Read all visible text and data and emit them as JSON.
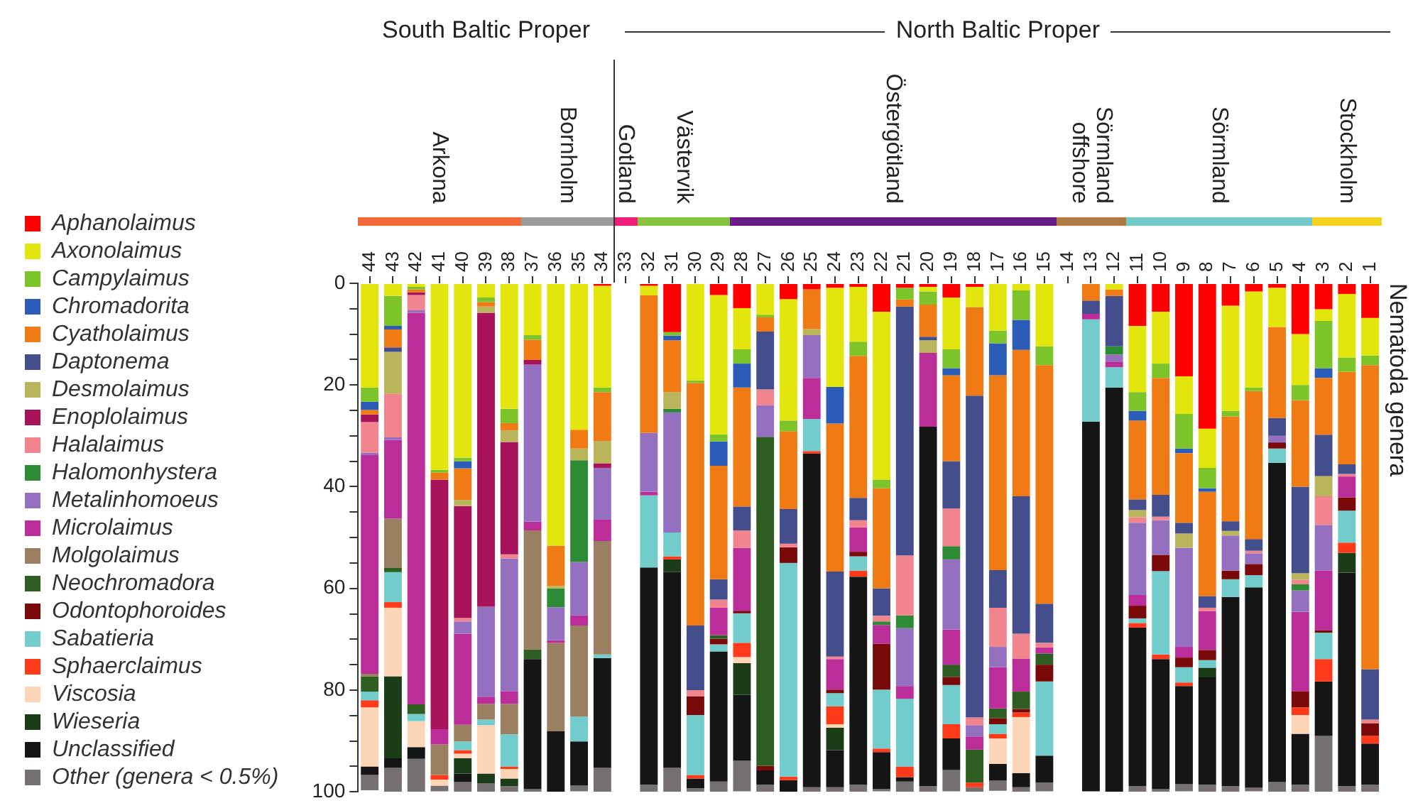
{
  "chart_data": {
    "type": "bar",
    "stacked": true,
    "ylabel": "Nematoda genera",
    "legend": "left",
    "categories": [
      "44",
      "43",
      "42",
      "41",
      "40",
      "39",
      "38",
      "37",
      "36",
      "35",
      "34",
      "33",
      "32",
      "31",
      "30",
      "29",
      "28",
      "27",
      "26",
      "25",
      "24",
      "23",
      "22",
      "21",
      "20",
      "19",
      "18",
      "17",
      "16",
      "15",
      "14",
      "13",
      "12",
      "11",
      "10",
      "9",
      "8",
      "7",
      "6",
      "5",
      "4",
      "3",
      "2",
      "1"
    ],
    "ylim": [
      100,
      0
    ],
    "yticks": [
      0,
      {
        "value": 5,
        "label": null
      },
      {
        "value": 10,
        "label": null
      },
      {
        "value": 15,
        "label": null
      },
      20,
      {
        "value": 25,
        "label": null
      },
      {
        "value": 30,
        "label": null
      },
      {
        "value": 35,
        "label": null
      },
      40,
      {
        "value": 45,
        "label": null
      },
      {
        "value": 50,
        "label": null
      },
      {
        "value": 55,
        "label": null
      },
      60,
      {
        "value": 65,
        "label": null
      },
      {
        "value": 70,
        "label": null
      },
      {
        "value": 75,
        "label": null
      },
      80,
      {
        "value": 85,
        "label": null
      },
      {
        "value": 90,
        "label": null
      },
      {
        "value": 95,
        "label": null
      },
      100
    ],
    "annotations": [
      "South Baltic Proper",
      "North Baltic Proper",
      "Arkona",
      "Bornholm",
      "Gotland",
      "Västervik",
      "Östergötland",
      "Sörmland offshore",
      "Sörmland",
      "Stockholm"
    ],
    "series": [
      {
        "name": "Aphanolaimus",
        "color": "#ff0000",
        "values": [
          0,
          0,
          0,
          0,
          0,
          0,
          0,
          0,
          0,
          0,
          0.5,
          null,
          0.5,
          9.6,
          0,
          2.3,
          4.9,
          0,
          3.1,
          1.2,
          0.9,
          0.7,
          5.6,
          0.9,
          0.7,
          2.8,
          0.7,
          0,
          0,
          0,
          null,
          0,
          0,
          8.4,
          5.6,
          18.3,
          28.6,
          4.4,
          1.6,
          0.9,
          10,
          5.1,
          2.1,
          6.8
        ]
      },
      {
        "name": "Axonolaimus",
        "color": "#e2e60c",
        "values": [
          20.5,
          2.5,
          0.7,
          36.7,
          34.3,
          2.8,
          24.7,
          10.2,
          51.6,
          28.8,
          20,
          null,
          1.9,
          0,
          19.1,
          27.4,
          8.1,
          6.2,
          23.9,
          0,
          19.5,
          10.8,
          33,
          0,
          0.9,
          10.2,
          4,
          9.3,
          1.4,
          12.4,
          null,
          0,
          1.2,
          13,
          10.2,
          7.4,
          7.7,
          20.7,
          18.9,
          7.7,
          10,
          2.3,
          12.5,
          7.4
        ]
      },
      {
        "name": "Campylaimus",
        "color": "#7dc42a",
        "values": [
          2.8,
          5.9,
          0.5,
          0.5,
          0.7,
          0.9,
          2.8,
          0.9,
          0,
          0,
          0.9,
          null,
          0,
          0.7,
          0.5,
          1.4,
          2.8,
          0.5,
          2.1,
          0,
          0,
          2.8,
          1.7,
          2.3,
          2.6,
          3.7,
          0,
          2.5,
          5.8,
          3.7,
          null,
          0,
          0,
          3.7,
          2.8,
          6.8,
          4,
          1.1,
          0.7,
          0,
          3,
          9.3,
          2.8,
          1.9
        ]
      },
      {
        "name": "Chromadorita",
        "color": "#2b5cb8",
        "values": [
          1.6,
          0.7,
          0,
          0,
          1.4,
          0,
          0,
          0,
          0,
          0,
          0,
          null,
          0,
          0.9,
          0,
          4.8,
          4.7,
          0,
          0,
          0,
          7.2,
          0,
          0,
          0,
          0,
          1.4,
          0,
          6.3,
          5.9,
          0,
          null,
          0,
          0,
          1.9,
          0,
          0.9,
          0.7,
          0,
          0,
          0,
          0,
          1.9,
          0,
          0
        ]
      },
      {
        "name": "Cyatholaimus",
        "color": "#f07a14",
        "values": [
          0.9,
          3.5,
          0.6,
          1.4,
          6.2,
          0.9,
          1.4,
          4,
          7.9,
          3.7,
          9.6,
          null,
          27,
          10.2,
          47.7,
          22.3,
          23.4,
          2.8,
          15.3,
          7.8,
          29.1,
          27.9,
          19.7,
          1.4,
          6.3,
          16.9,
          17.4,
          38.3,
          28.8,
          46.9,
          null,
          3.4,
          1.3,
          15.5,
          23,
          13.7,
          20.5,
          20.6,
          29.1,
          17.9,
          17,
          11.2,
          18.2,
          59.8
        ]
      },
      {
        "name": "Daptonema",
        "color": "#454e8c",
        "values": [
          0,
          0.9,
          0,
          0,
          0,
          0,
          0,
          0,
          0,
          0,
          0,
          null,
          0,
          0,
          12.7,
          4,
          4.7,
          11.4,
          6.8,
          0,
          16.7,
          4.4,
          5.4,
          48.9,
          0.7,
          9.3,
          63.3,
          7.4,
          27,
          7.7,
          null,
          2.6,
          9.9,
          2.1,
          4.3,
          2.1,
          2.3,
          1.9,
          2.3,
          3.5,
          17,
          8.1,
          1.9,
          9.9
        ]
      },
      {
        "name": "Desmolaimus",
        "color": "#bab45a",
        "values": [
          0,
          8.2,
          0,
          0,
          1.2,
          1.2,
          2.3,
          0,
          0.5,
          2.3,
          4.4,
          null,
          0,
          3.3,
          0,
          0,
          0,
          0,
          0,
          1.2,
          0,
          0,
          0,
          0,
          2.5,
          0,
          0,
          0,
          0,
          0,
          null,
          0,
          0,
          1.4,
          0,
          2.8,
          0,
          0.9,
          0,
          0,
          1.3,
          4,
          0,
          0
        ]
      },
      {
        "name": "Enoplolaimus",
        "color": "#a8125a",
        "values": [
          1.5,
          0,
          0.5,
          49.1,
          22,
          57.8,
          22.1,
          0.9,
          0,
          0,
          0.9,
          null,
          0,
          0,
          0,
          0,
          0,
          0,
          0,
          0,
          0,
          0,
          0,
          0,
          0,
          0,
          0,
          0,
          0,
          0,
          null,
          0,
          0,
          0,
          0,
          0,
          0,
          0,
          0,
          0,
          0,
          0,
          0,
          0
        ]
      },
      {
        "name": "Halalaimus",
        "color": "#f2848e",
        "values": [
          6,
          8.6,
          3,
          0,
          0.7,
          0,
          0.8,
          0,
          0,
          0,
          0,
          null,
          0,
          0,
          1.2,
          1.6,
          3.4,
          3.1,
          0.7,
          0,
          0.5,
          1.4,
          1.1,
          11.8,
          0,
          7.4,
          1.5,
          7.7,
          4.9,
          0.9,
          null,
          0,
          0,
          1.1,
          0.7,
          0,
          0.7,
          0,
          0.5,
          0,
          0.9,
          5.6,
          0.5,
          0.7
        ]
      },
      {
        "name": "Halomonhystera",
        "color": "#2e8b35",
        "values": [
          0,
          0,
          0,
          0,
          0,
          0,
          0,
          0,
          3.7,
          20,
          0,
          null,
          0,
          0.7,
          0,
          0,
          0,
          0,
          0,
          0,
          0,
          0,
          0.7,
          2.5,
          0,
          2.6,
          0,
          0,
          0,
          0,
          null,
          0,
          1.6,
          0,
          0,
          0,
          0,
          0,
          0,
          0,
          1.2,
          0,
          0,
          0
        ]
      },
      {
        "name": "Metalinhomoeus",
        "color": "#9670c0",
        "values": [
          0.5,
          0.5,
          0.5,
          0,
          2.4,
          17.7,
          26.1,
          30.9,
          6.5,
          10.5,
          10.2,
          null,
          11.6,
          23.6,
          0,
          0,
          0,
          6.2,
          0,
          8.4,
          0,
          0,
          0,
          11.4,
          0,
          13.8,
          2.2,
          4,
          0,
          0,
          null,
          0,
          1.4,
          14.2,
          6.8,
          19.5,
          0,
          6.9,
          2.1,
          1.3,
          4.2,
          9,
          0,
          0
        ]
      },
      {
        "name": "Microlaimus",
        "color": "#bb2d98",
        "values": [
          43,
          15.5,
          77,
          3,
          17.9,
          1.4,
          2.5,
          1.7,
          0.5,
          2,
          4.2,
          null,
          0.7,
          0,
          0,
          5.4,
          12.4,
          0,
          0,
          8.1,
          6,
          4.8,
          3.7,
          2.5,
          14.5,
          6.9,
          2.6,
          8.1,
          6.5,
          1.2,
          null,
          1.1,
          1.1,
          2.1,
          0,
          2.1,
          7.6,
          0,
          0,
          0,
          15.6,
          11.7,
          4.1,
          0
        ]
      },
      {
        "name": "Molgolaimus",
        "color": "#9a8060",
        "values": [
          0.5,
          9.6,
          0,
          6,
          3.3,
          3.1,
          6,
          23.4,
          17.4,
          17.9,
          22.3,
          null,
          0,
          0,
          0,
          0,
          0,
          0,
          0,
          0,
          0,
          0,
          0,
          0,
          0,
          0,
          0,
          0,
          0,
          0,
          null,
          0,
          0,
          0,
          0,
          0,
          0,
          0,
          0,
          0,
          0,
          0,
          0,
          0
        ]
      },
      {
        "name": "Neochromadora",
        "color": "#2f5e22",
        "values": [
          3,
          0.9,
          1.9,
          0,
          0,
          0,
          0,
          1.9,
          0,
          0,
          0,
          null,
          0,
          0,
          0,
          0.7,
          0,
          64.7,
          0,
          0,
          0,
          0,
          0,
          0,
          0,
          2.4,
          6.5,
          1.9,
          3.4,
          2.2,
          null,
          0,
          0,
          0,
          0,
          0,
          0,
          0,
          0,
          0,
          0,
          0,
          0,
          0
        ]
      },
      {
        "name": "Odontophoroides",
        "color": "#7a0a0a",
        "values": [
          0,
          0,
          0,
          0,
          0,
          0,
          0,
          0,
          0,
          0,
          0,
          null,
          0,
          0,
          3.7,
          1.1,
          0.5,
          0.9,
          3.1,
          0,
          0.7,
          0.9,
          9,
          0,
          0,
          1.6,
          0,
          1.2,
          0.7,
          3.3,
          null,
          0,
          0,
          2.5,
          3.2,
          1.9,
          2,
          1.7,
          2.2,
          1.2,
          3.2,
          0.5,
          2.6,
          2.5
        ]
      },
      {
        "name": "Sabatieria",
        "color": "#72cccc",
        "values": [
          1.7,
          5.9,
          1.4,
          0,
          1.7,
          1.1,
          6.3,
          0,
          0,
          4.9,
          0.7,
          null,
          14.2,
          4.7,
          11.8,
          1.4,
          5.8,
          0,
          42,
          6.3,
          2.6,
          2.8,
          11.6,
          13.3,
          0,
          7.7,
          0,
          1.9,
          0,
          14.6,
          null,
          20.1,
          4,
          0.9,
          16.4,
          3,
          1.5,
          3.5,
          2.4,
          2.8,
          0,
          5.2,
          6.3,
          0
        ]
      },
      {
        "name": "Sphaerclaimus",
        "color": "#ff3a1a",
        "values": [
          1.4,
          1.1,
          0,
          0.9,
          0.7,
          0,
          0.5,
          0,
          0,
          0,
          0,
          null,
          0,
          0.6,
          0.7,
          0,
          2.8,
          0,
          0.7,
          0.5,
          3.5,
          1.2,
          0.7,
          2.1,
          0,
          2.8,
          0.9,
          0.9,
          0.9,
          0,
          null,
          0,
          0,
          0.9,
          0.9,
          0.7,
          0,
          0,
          0,
          0,
          1.5,
          4.4,
          2,
          1.5
        ]
      },
      {
        "name": "Viscosia",
        "color": "#fbd5b5",
        "values": [
          11.6,
          13.5,
          5.1,
          1.2,
          0.9,
          9.5,
          1.9,
          0,
          0,
          0,
          0,
          null,
          0,
          0,
          0,
          0,
          1.2,
          0,
          0,
          0,
          0.7,
          0,
          0,
          0,
          0,
          0,
          0,
          5,
          11,
          0,
          null,
          0,
          0,
          0,
          0,
          0,
          0,
          0,
          0,
          0,
          3.7,
          0,
          0,
          0
        ]
      },
      {
        "name": "Wieseria",
        "color": "#1a3d18",
        "values": [
          0,
          16.1,
          0,
          0,
          3,
          1.9,
          1.5,
          0,
          0,
          0,
          0,
          null,
          0,
          2.5,
          0,
          0,
          6.2,
          0,
          0,
          0,
          4.4,
          0,
          0,
          0,
          0,
          0,
          0,
          0,
          0,
          0,
          null,
          0,
          0,
          0,
          0,
          0,
          1.9,
          0,
          0,
          0,
          0,
          0,
          3.9,
          0
        ]
      },
      {
        "name": "Unclassified",
        "color": "#151515",
        "values": [
          1.7,
          1.9,
          2.3,
          0,
          1.7,
          0,
          0,
          25.6,
          11.9,
          8.7,
          21.6,
          null,
          42.7,
          38.5,
          1.9,
          25.6,
          13,
          2.8,
          2.3,
          65.6,
          7.3,
          40.9,
          7.2,
          0.9,
          70.7,
          6.2,
          0,
          3.3,
          2.8,
          5.3,
          null,
          72.7,
          79.5,
          31.2,
          25.6,
          19.3,
          21.1,
          37.2,
          39.4,
          62.8,
          10,
          10.7,
          42,
          8.1
        ]
      },
      {
        "name": "Other (genera < 0.5%)",
        "color": "#777070",
        "values": [
          3,
          4.7,
          6.5,
          1.1,
          1.9,
          1.7,
          1.1,
          0.5,
          0,
          1.1,
          4.7,
          null,
          1.4,
          4.7,
          0.7,
          2,
          6,
          1.4,
          0,
          0.9,
          0.9,
          1.4,
          0.5,
          2,
          1.1,
          4.2,
          0.9,
          2,
          0.9,
          1.7,
          null,
          0,
          0,
          1.1,
          0.5,
          1.4,
          1.4,
          1.1,
          0.7,
          1.9,
          1.4,
          11,
          1.1,
          1.4
        ]
      }
    ]
  }
}
